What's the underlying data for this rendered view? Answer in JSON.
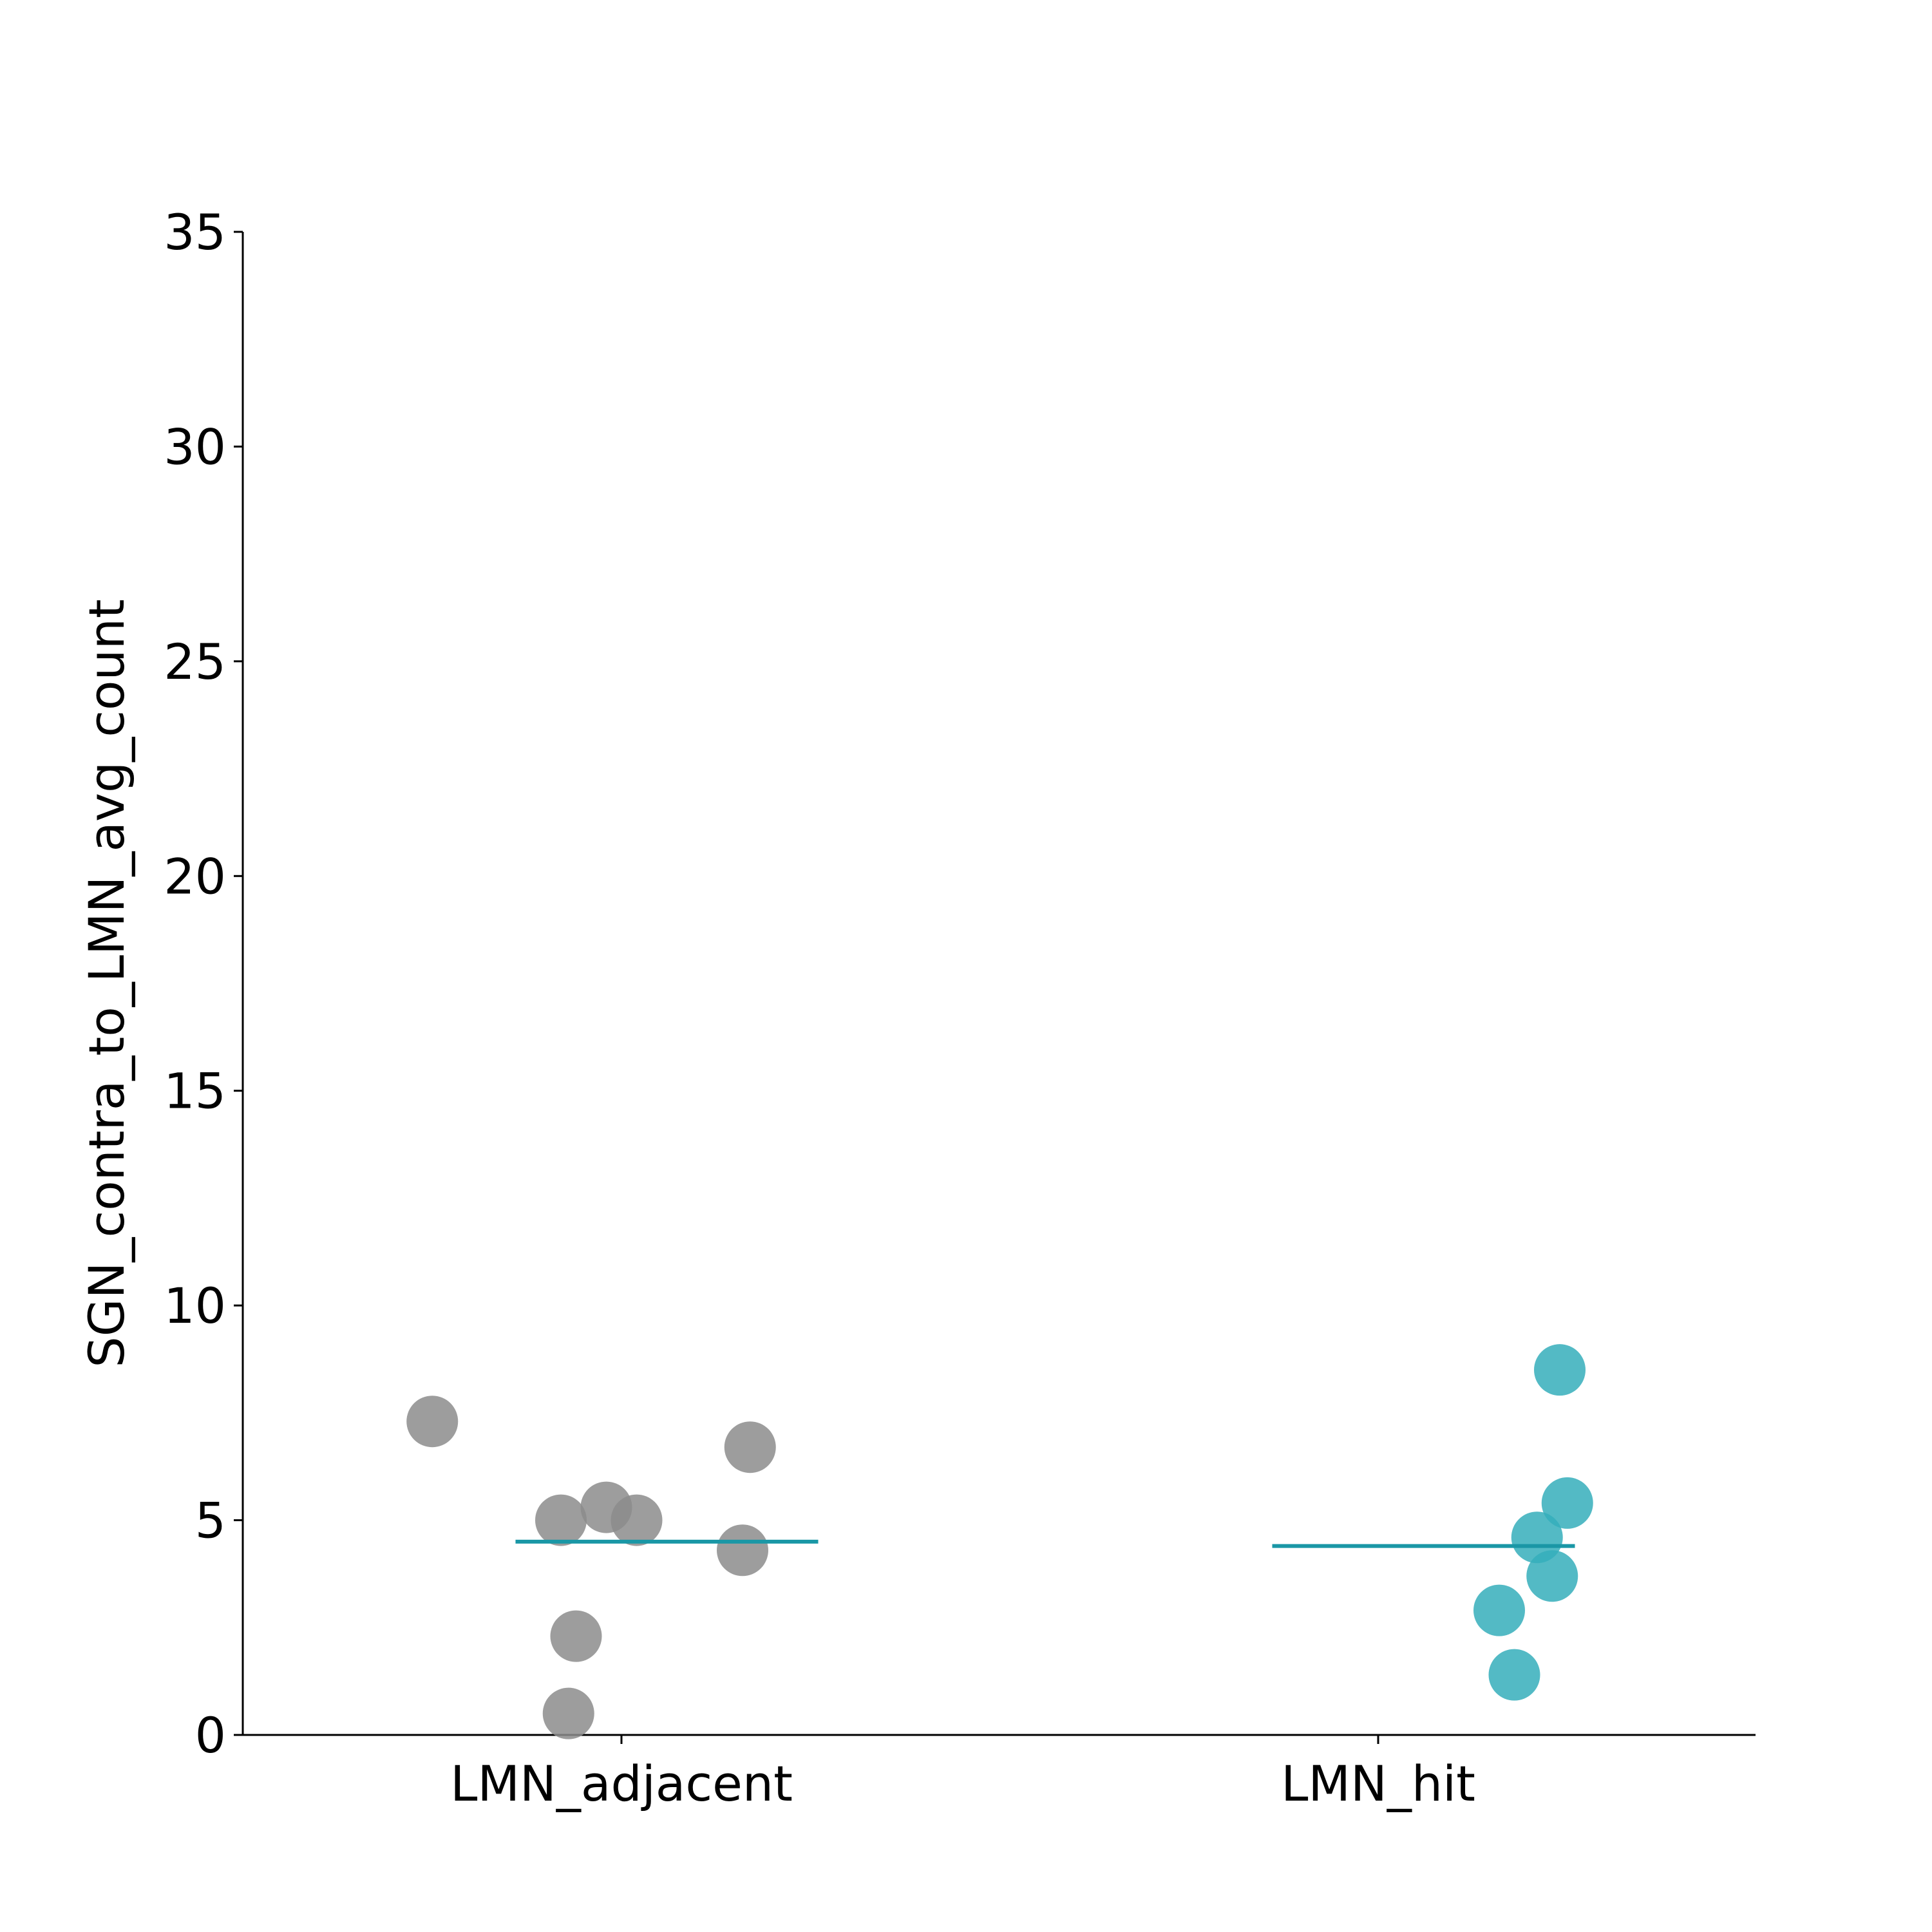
{
  "chart_data": {
    "type": "scatter",
    "title": "",
    "xlabel": "",
    "ylabel": "SGN_contra_to_LMN_avg_count",
    "ylim": [
      0,
      35
    ],
    "yticks": [
      "0",
      "5",
      "10",
      "15",
      "20",
      "25",
      "30",
      "35"
    ],
    "categories": [
      "LMN_adjacent",
      "LMN_hit"
    ],
    "grid": false,
    "series": [
      {
        "category": "LMN_adjacent",
        "color": "#8c8c8c",
        "mean": 4.5,
        "mean_color": "#1a97a6",
        "points": [
          {
            "offset": -0.25,
            "y": 7.3
          },
          {
            "offset": 0.17,
            "y": 6.7
          },
          {
            "offset": -0.02,
            "y": 5.3
          },
          {
            "offset": -0.08,
            "y": 5.0
          },
          {
            "offset": 0.02,
            "y": 5.0
          },
          {
            "offset": 0.16,
            "y": 4.3
          },
          {
            "offset": -0.06,
            "y": 2.3
          },
          {
            "offset": -0.07,
            "y": 0.5
          }
        ]
      },
      {
        "category": "LMN_hit",
        "color": "#35aebb",
        "mean": 4.4,
        "mean_color": "#1a97a6",
        "points": [
          {
            "offset": 0.24,
            "y": 8.5
          },
          {
            "offset": 0.25,
            "y": 5.4
          },
          {
            "offset": 0.21,
            "y": 4.6
          },
          {
            "offset": 0.23,
            "y": 3.7
          },
          {
            "offset": 0.16,
            "y": 2.9
          },
          {
            "offset": 0.18,
            "y": 1.4
          }
        ]
      }
    ]
  }
}
